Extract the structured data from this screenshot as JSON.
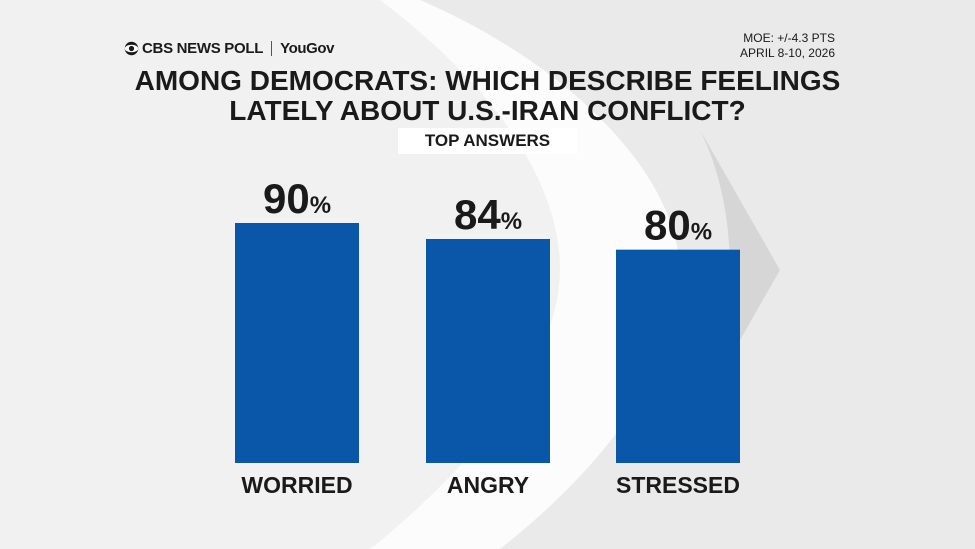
{
  "header": {
    "brand_cbs": "CBS NEWS POLL",
    "brand_partner": "YouGov",
    "moe": "MOE: +/-4.3 PTS",
    "dates": "APRIL 8-10, 2026"
  },
  "subtitle": "TOP ANSWERS",
  "chart_data": {
    "type": "bar",
    "title": "AMONG DEMOCRATS: WHICH DESCRIBE FEELINGS LATELY ABOUT U.S.-IRAN CONFLICT?",
    "title_lines": [
      "AMONG DEMOCRATS: WHICH DESCRIBE FEELINGS",
      "LATELY ABOUT U.S.-IRAN CONFLICT?"
    ],
    "categories": [
      "WORRIED",
      "ANGRY",
      "STRESSED"
    ],
    "values": [
      90,
      84,
      80
    ],
    "unit": "%",
    "bar_color": "#0a57aa",
    "ylim": [
      0,
      100
    ],
    "grid": false
  }
}
